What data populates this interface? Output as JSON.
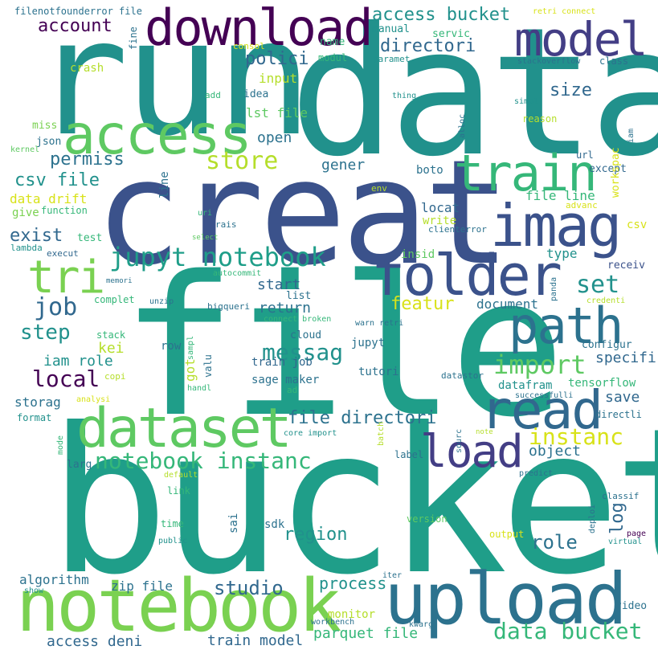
{
  "words": {
    "run": "run",
    "data": "data",
    "creat": "creat",
    "file": "file",
    "bucket": "bucket",
    "notebook": "notebook",
    "upload": "upload",
    "download": "download",
    "model": "model",
    "access": "access",
    "train": "train",
    "imag": "imag",
    "folder": "folder",
    "path": "path",
    "read": "read",
    "dataset": "dataset",
    "load": "load",
    "tri": "tri",
    "jupyt_notebook": "jupyt notebook",
    "notebook_instanc": "notebook instanc",
    "data_bucket": "data bucket",
    "local": "local",
    "job": "job",
    "store": "store",
    "access_bucket": "access bucket",
    "account": "account",
    "directori": "directori",
    "polici": "polici",
    "import": "import",
    "instanc": "instanc",
    "file_directori": "file directori",
    "messag": "messag",
    "set": "set",
    "step": "step",
    "csv_file": "csv file",
    "permiss": "permiss",
    "size": "size",
    "featur": "featur",
    "exist": "exist",
    "studio": "studio",
    "region": "region",
    "role": "role",
    "process": "process",
    "train_model": "train model",
    "parquet_file": "parquet file",
    "access_deni": "access deni",
    "algorithm": "algorithm",
    "zip_file": "zip file",
    "object": "object",
    "save": "save",
    "specifi": "specifi",
    "log": "log",
    "document": "document",
    "start": "start",
    "return": "return",
    "iam_role": "iam role",
    "kei": "kei",
    "input": "input",
    "open": "open",
    "gener": "gener",
    "data_drift": "data drift",
    "crash": "crash",
    "lst_file": "lst file",
    "miss": "miss",
    "json": "json",
    "storag": "storag",
    "line": "line",
    "file_line": "file line",
    "locat": "locat",
    "write": "write",
    "except": "except",
    "workspac": "workspac",
    "csv": "csv",
    "boto": "boto",
    "reason": "reason",
    "type": "type",
    "insid": "insid",
    "receiv": "receiv",
    "list": "list",
    "cloud": "cloud",
    "jupyt": "jupyt",
    "configur": "configur",
    "row": "row",
    "got": "got",
    "valu": "valu",
    "train_job": "train job",
    "sage_maker": "sage maker",
    "tutori": "tutori",
    "dataframe": "datafram",
    "tensorflow": "tensorflow",
    "manual": "manual",
    "servic": "servic",
    "name": "name",
    "modul": "modul",
    "consol": "consol",
    "paramet": "paramet",
    "idea": "idea",
    "add": "add",
    "thing": "thing",
    "simpl": "simpl",
    "class": "class",
    "stackoverflow": "stackoverflow",
    "retri_connect": "retri connect",
    "fine": "fine",
    "filenotfounderror_file": "filenotfounderror file",
    "alloc": "alloc",
    "iam": "iam",
    "url": "url",
    "give": "give",
    "function": "function",
    "test": "test",
    "lambda": "lambda",
    "execut": "execut",
    "kernel": "kernel",
    "env": "env",
    "uri": "uri",
    "rais": "rais",
    "select": "select",
    "advanc": "advanc",
    "clienterror": "clienterror",
    "autocommit": "autocommit",
    "memori": "memori",
    "complet": "complet",
    "unzip": "unzip",
    "bigqueri": "bigqueri",
    "panda": "panda",
    "credenti": "credenti",
    "connect_broken": "connect broken",
    "warn_retri": "warn retri",
    "stack": "stack",
    "sampl": "sampl",
    "copi": "copi",
    "handl": "handl",
    "ad": "ad",
    "analysi": "analysi",
    "format": "format",
    "datastor": "datastor",
    "successfulli": "successfulli",
    "directli": "directli",
    "core_import": "core import",
    "batch": "batch",
    "sourc": "sourc",
    "note": "note",
    "mode": "mode",
    "larg": "larg",
    "label": "label",
    "default": "default",
    "predict": "predict",
    "link": "link",
    "sdk": "sdk",
    "sai": "sai",
    "time": "time",
    "public": "public",
    "version": "version",
    "classif": "classif",
    "deploi": "deploi",
    "page": "page",
    "virtual": "virtual",
    "output": "output",
    "show": "show",
    "iter": "iter",
    "monitor": "monitor",
    "workbench": "workbench",
    "kwarg": "kwarg",
    "video": "video"
  },
  "colors": {
    "teal": "#21918c",
    "teal_green": "#1f9e89",
    "dark_purple": "#440154",
    "indigo": "#3b528b",
    "blue": "#31688e",
    "deep_indigo": "#433e85",
    "green": "#5ec962",
    "light_green": "#7ad151",
    "lime": "#b5de2b",
    "yellow": "#d8e219",
    "aqua_green": "#35b779",
    "slate": "#2c728e"
  }
}
